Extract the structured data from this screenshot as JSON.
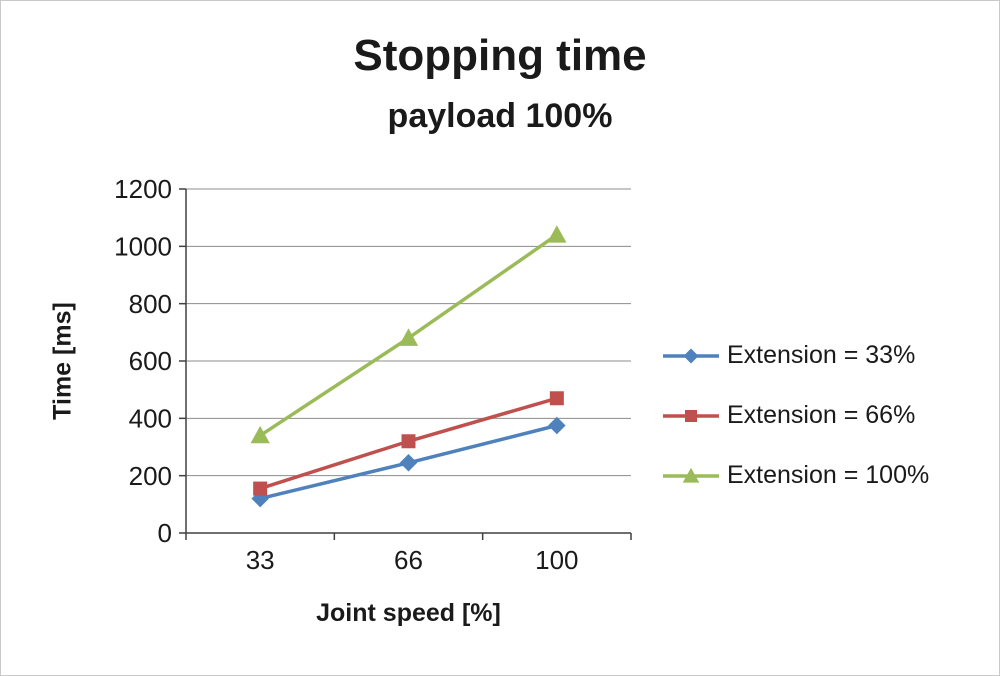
{
  "chart_data": {
    "type": "line",
    "title": "Stopping time",
    "subtitle": "payload 100%",
    "xlabel": "Joint speed [%]",
    "ylabel": "Time [ms]",
    "categories": [
      "33",
      "66",
      "100"
    ],
    "ylim": [
      0,
      1200
    ],
    "yticks": [
      0,
      200,
      400,
      600,
      800,
      1000,
      1200
    ],
    "grid": true,
    "legend_position": "right",
    "series": [
      {
        "name": "Extension = 33%",
        "marker": "diamond",
        "color": "#4F81BD",
        "values": [
          120,
          245,
          375
        ]
      },
      {
        "name": "Extension = 66%",
        "marker": "square",
        "color": "#C0504D",
        "values": [
          155,
          320,
          470
        ]
      },
      {
        "name": "Extension = 100%",
        "marker": "triangle",
        "color": "#9BBB59",
        "values": [
          340,
          680,
          1040
        ]
      }
    ]
  }
}
